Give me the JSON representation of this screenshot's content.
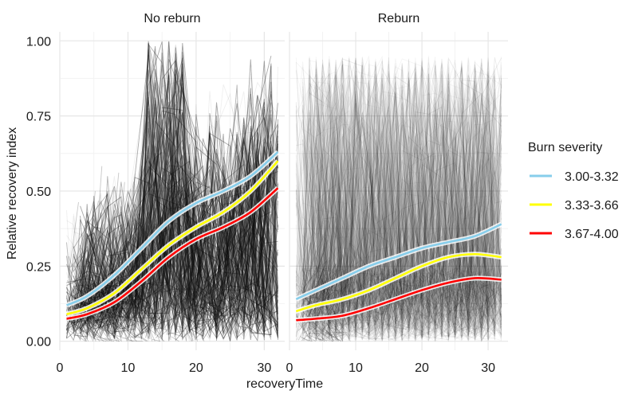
{
  "chart_data": {
    "type": "line",
    "xlabel": "recoveryTime",
    "ylabel": "Relative recovery index",
    "xlim": [
      0,
      33
    ],
    "ylim": [
      -0.03,
      1.03
    ],
    "xticks": [
      0,
      10,
      20,
      30
    ],
    "yticks": [
      0.0,
      0.25,
      0.5,
      0.75,
      1.0
    ],
    "ytick_labels": [
      "0.00",
      "0.25",
      "0.50",
      "0.75",
      "1.00"
    ],
    "grid": true,
    "legend": {
      "title": "Burn severity",
      "placement": "right",
      "entries": [
        "3.00-3.32",
        "3.33-3.66",
        "3.67-4.00"
      ],
      "colors": [
        "#87ceeb",
        "#ffff00",
        "#ff0000"
      ]
    },
    "panels": [
      {
        "title": "No reburn",
        "background_trajectories": "dense",
        "series": [
          {
            "name": "3.00-3.32",
            "color": "#87ceeb",
            "x": [
              1,
              4,
              8,
              12,
              16,
              20,
              24,
              28,
              32
            ],
            "y": [
              0.12,
              0.15,
              0.22,
              0.31,
              0.4,
              0.46,
              0.5,
              0.55,
              0.63
            ]
          },
          {
            "name": "3.33-3.66",
            "color": "#ffff00",
            "x": [
              1,
              4,
              8,
              12,
              16,
              20,
              24,
              28,
              32
            ],
            "y": [
              0.09,
              0.11,
              0.16,
              0.24,
              0.32,
              0.38,
              0.43,
              0.5,
              0.6
            ]
          },
          {
            "name": "3.67-4.00",
            "color": "#ff0000",
            "x": [
              1,
              4,
              8,
              12,
              16,
              20,
              24,
              28,
              32
            ],
            "y": [
              0.075,
              0.09,
              0.13,
              0.2,
              0.28,
              0.34,
              0.38,
              0.43,
              0.51
            ]
          }
        ]
      },
      {
        "title": "Reburn",
        "background_trajectories": "sparse",
        "series": [
          {
            "name": "3.00-3.32",
            "color": "#87ceeb",
            "x": [
              1,
              4,
              8,
              12,
              16,
              20,
              24,
              28,
              32
            ],
            "y": [
              0.14,
              0.17,
              0.21,
              0.25,
              0.28,
              0.31,
              0.33,
              0.35,
              0.39
            ]
          },
          {
            "name": "3.33-3.66",
            "color": "#ffff00",
            "x": [
              1,
              4,
              8,
              12,
              16,
              20,
              24,
              28,
              32
            ],
            "y": [
              0.1,
              0.12,
              0.14,
              0.17,
              0.21,
              0.25,
              0.28,
              0.29,
              0.28
            ]
          },
          {
            "name": "3.67-4.00",
            "color": "#ff0000",
            "x": [
              1,
              4,
              8,
              12,
              16,
              20,
              24,
              28,
              32
            ],
            "y": [
              0.07,
              0.075,
              0.085,
              0.11,
              0.14,
              0.17,
              0.195,
              0.21,
              0.205
            ]
          }
        ]
      }
    ]
  }
}
